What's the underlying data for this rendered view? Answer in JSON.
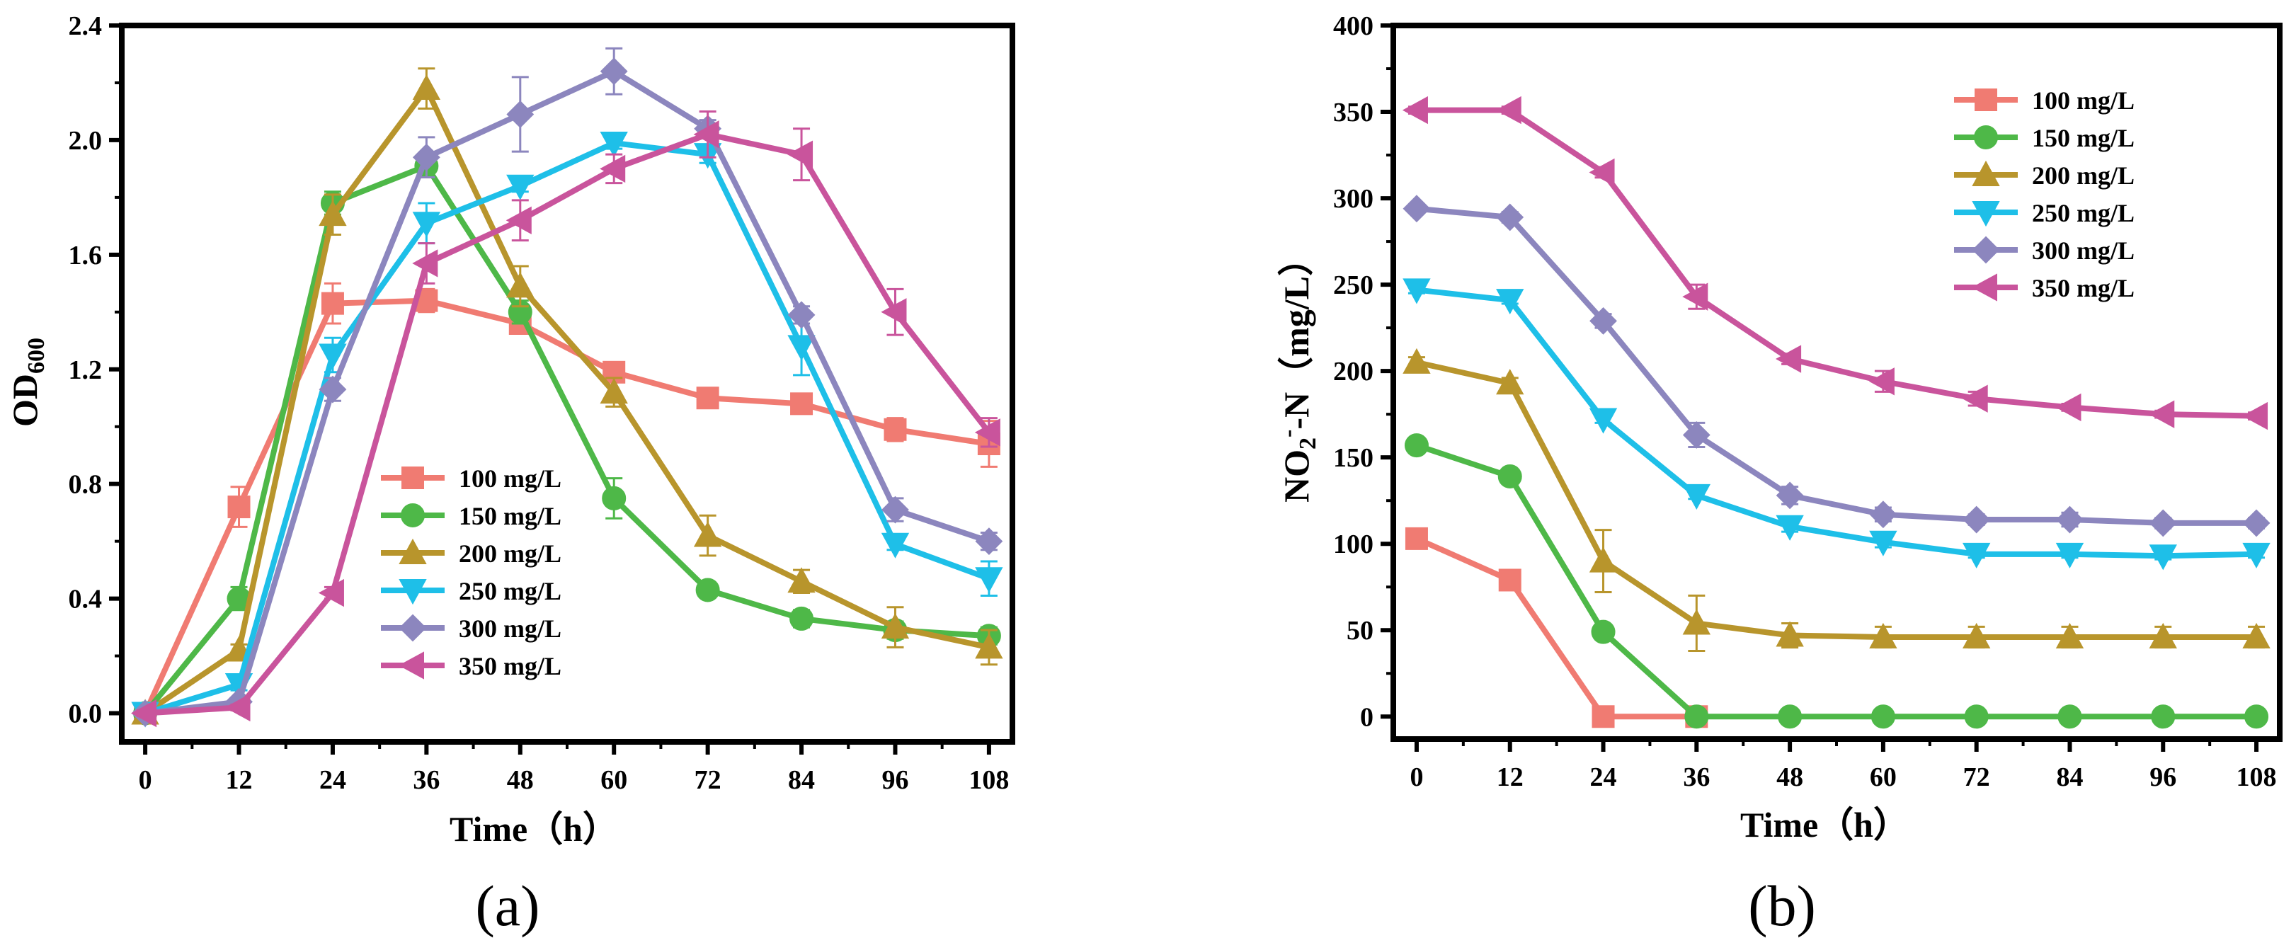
{
  "figure": {
    "panel_labels": [
      "(a)",
      "(b)"
    ]
  },
  "chart_data": [
    {
      "type": "line",
      "panel": "(a)",
      "title": "",
      "xlabel": "Time（h）",
      "ylabel_main": "OD",
      "ylabel_sub": "600",
      "x": [
        0,
        12,
        24,
        36,
        48,
        60,
        72,
        84,
        96,
        108
      ],
      "xticks": [
        0,
        12,
        24,
        36,
        48,
        60,
        72,
        84,
        96,
        108
      ],
      "yticks": [
        "0.0",
        "0.4",
        "0.8",
        "1.2",
        "1.6",
        "2.0",
        "2.4"
      ],
      "xlim": [
        -3,
        111
      ],
      "ylim": [
        -0.1,
        2.4
      ],
      "legend_position": "lower-center",
      "series": [
        {
          "name": "100 mg/L",
          "color": "#F07B72",
          "marker": "square",
          "values": [
            0.0,
            0.72,
            1.43,
            1.44,
            1.36,
            1.19,
            1.1,
            1.08,
            0.99,
            0.94
          ],
          "errors": [
            0.01,
            0.07,
            0.07,
            0.04,
            0.03,
            0.02,
            0.02,
            0.02,
            0.04,
            0.08
          ]
        },
        {
          "name": "150 mg/L",
          "color": "#4EB848",
          "marker": "circle",
          "values": [
            0.0,
            0.4,
            1.78,
            1.91,
            1.4,
            0.75,
            0.43,
            0.33,
            0.29,
            0.27
          ],
          "errors": [
            0.01,
            0.04,
            0.04,
            0.04,
            0.04,
            0.07,
            0.02,
            0.03,
            0.03,
            0.03
          ]
        },
        {
          "name": "200 mg/L",
          "color": "#B8952C",
          "marker": "triangle-up",
          "values": [
            0.0,
            0.22,
            1.74,
            2.18,
            1.49,
            1.12,
            0.62,
            0.46,
            0.3,
            0.23
          ],
          "errors": [
            0.01,
            0.02,
            0.07,
            0.07,
            0.07,
            0.05,
            0.07,
            0.04,
            0.07,
            0.06
          ]
        },
        {
          "name": "250 mg/L",
          "color": "#1EBFE8",
          "marker": "triangle-down",
          "values": [
            0.0,
            0.1,
            1.25,
            1.71,
            1.84,
            1.99,
            1.95,
            1.28,
            0.59,
            0.47
          ],
          "errors": [
            0.01,
            0.02,
            0.06,
            0.07,
            0.02,
            0.02,
            0.03,
            0.1,
            0.02,
            0.06
          ]
        },
        {
          "name": "300 mg/L",
          "color": "#8C86BE",
          "marker": "diamond",
          "values": [
            0.0,
            0.04,
            1.13,
            1.94,
            2.09,
            2.24,
            2.04,
            1.39,
            0.71,
            0.6
          ],
          "errors": [
            0.01,
            0.01,
            0.04,
            0.07,
            0.13,
            0.08,
            0.03,
            0.03,
            0.04,
            0.03
          ]
        },
        {
          "name": "350 mg/L",
          "color": "#C9549C",
          "marker": "triangle-left",
          "values": [
            0.0,
            0.02,
            0.42,
            1.57,
            1.72,
            1.9,
            2.02,
            1.95,
            1.4,
            0.98
          ],
          "errors": [
            0.01,
            0.01,
            0.02,
            0.07,
            0.07,
            0.05,
            0.08,
            0.09,
            0.08,
            0.05
          ]
        }
      ]
    },
    {
      "type": "line",
      "panel": "(b)",
      "title": "",
      "xlabel": "Time（h）",
      "ylabel_main": "NO",
      "ylabel_sub": "2",
      "ylabel_sup": "-",
      "ylabel_rest": "-N（mg/L）",
      "x": [
        0,
        12,
        24,
        36,
        48,
        60,
        72,
        84,
        96,
        108
      ],
      "xticks": [
        0,
        12,
        24,
        36,
        48,
        60,
        72,
        84,
        96,
        108
      ],
      "yticks": [
        "0",
        "50",
        "100",
        "150",
        "200",
        "250",
        "300",
        "350",
        "400"
      ],
      "xlim": [
        -3,
        111
      ],
      "ylim": [
        -13,
        400
      ],
      "legend_position": "top-right",
      "series": [
        {
          "name": "100 mg/L",
          "color": "#F07B72",
          "marker": "square",
          "values": [
            103,
            79,
            0,
            0,
            null,
            null,
            null,
            null,
            null,
            null
          ],
          "errors": [
            2,
            2,
            1,
            1,
            null,
            null,
            null,
            null,
            null,
            null
          ]
        },
        {
          "name": "150 mg/L",
          "color": "#4EB848",
          "marker": "circle",
          "values": [
            157,
            139,
            49,
            0,
            0,
            0,
            0,
            0,
            0,
            0
          ],
          "errors": [
            3,
            2,
            2,
            1,
            1,
            1,
            1,
            1,
            1,
            1
          ]
        },
        {
          "name": "200 mg/L",
          "color": "#B8952C",
          "marker": "triangle-up",
          "values": [
            205,
            193,
            90,
            54,
            47,
            46,
            46,
            46,
            46,
            46
          ],
          "errors": [
            3,
            3,
            18,
            16,
            7,
            6,
            6,
            6,
            6,
            6
          ]
        },
        {
          "name": "250 mg/L",
          "color": "#1EBFE8",
          "marker": "triangle-down",
          "values": [
            247,
            241,
            172,
            128,
            110,
            101,
            94,
            94,
            93,
            94
          ],
          "errors": [
            2,
            2,
            2,
            2,
            3,
            3,
            2,
            2,
            2,
            2
          ]
        },
        {
          "name": "300 mg/L",
          "color": "#8C86BE",
          "marker": "diamond",
          "values": [
            294,
            289,
            229,
            163,
            128,
            117,
            114,
            114,
            112,
            112
          ],
          "errors": [
            2,
            3,
            4,
            7,
            5,
            4,
            3,
            4,
            3,
            3
          ]
        },
        {
          "name": "350 mg/L",
          "color": "#C9549C",
          "marker": "triangle-left",
          "values": [
            351,
            351,
            315,
            243,
            207,
            194,
            184,
            179,
            175,
            174
          ],
          "errors": [
            2,
            2,
            3,
            7,
            3,
            6,
            4,
            2,
            2,
            2
          ]
        }
      ]
    }
  ]
}
